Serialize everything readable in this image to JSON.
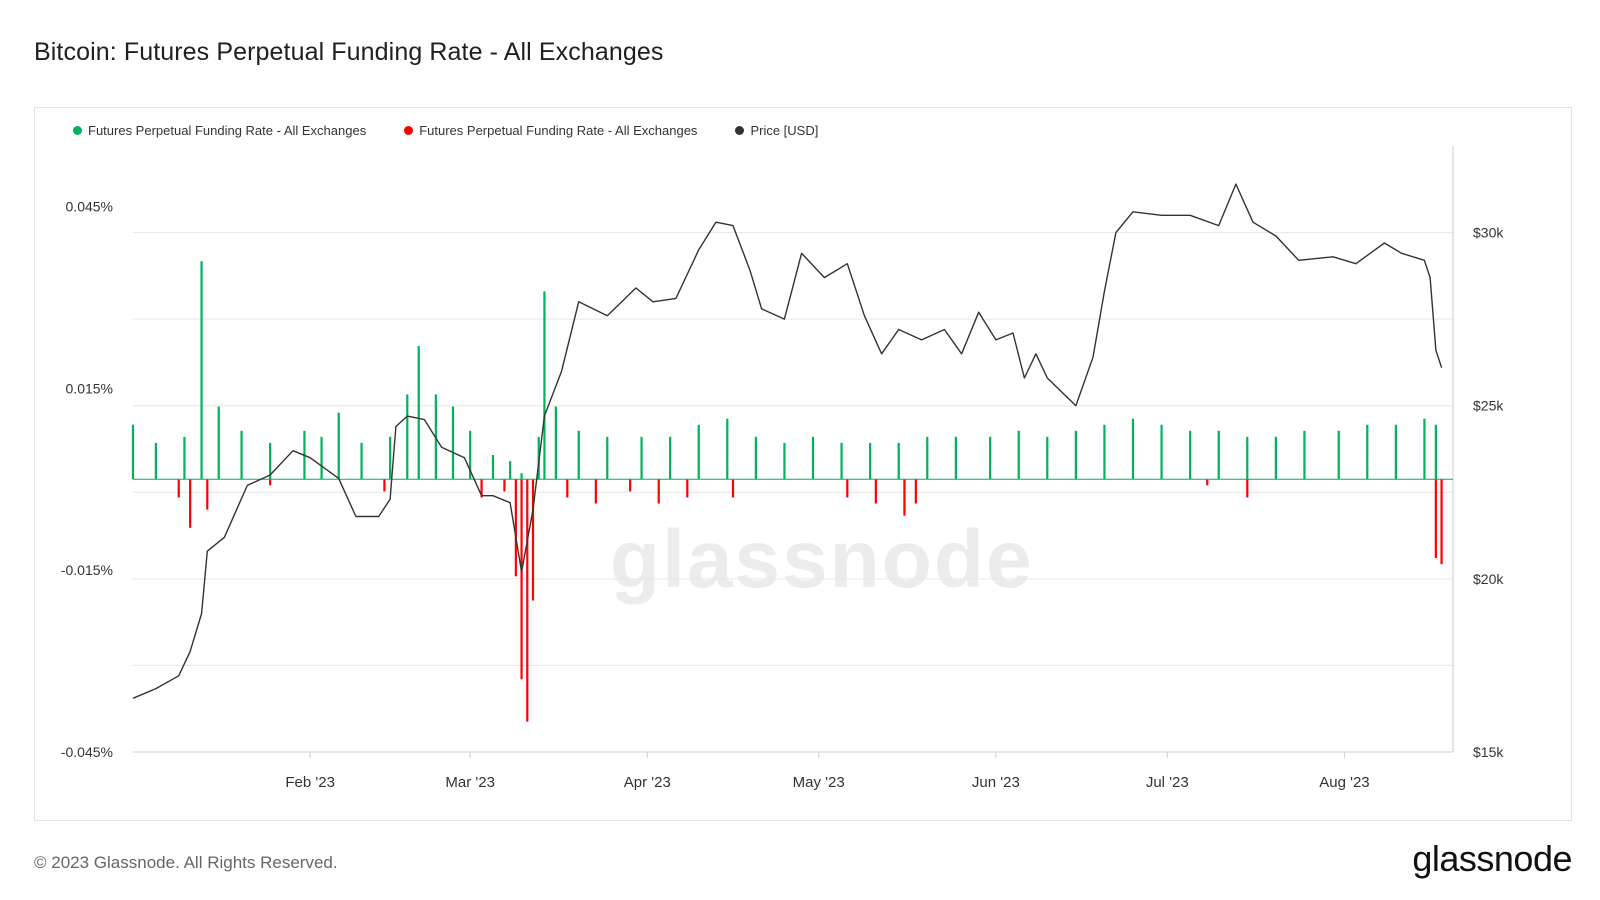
{
  "title": "Bitcoin: Futures Perpetual Funding Rate - All Exchanges",
  "footer": "© 2023 Glassnode. All Rights Reserved.",
  "brand": "glassnode",
  "watermark": "glassnode",
  "legend": [
    {
      "label": "Futures Perpetual Funding Rate - All Exchanges",
      "color": "#00b25a"
    },
    {
      "label": "Futures Perpetual Funding Rate - All Exchanges",
      "color": "#ff0000"
    },
    {
      "label": "Price [USD]",
      "color": "#333333"
    }
  ],
  "chart_data": {
    "type": "bar",
    "title": "Bitcoin: Futures Perpetual Funding Rate - All Exchanges",
    "x_range": [
      "2023-01-01",
      "2023-08-20"
    ],
    "x_ticks": [
      "Feb '23",
      "Mar '23",
      "Apr '23",
      "May '23",
      "Jun '23",
      "Jul '23",
      "Aug '23"
    ],
    "y_left_ticks": [
      "0.045%",
      "0.015%",
      "-0.015%",
      "-0.045%"
    ],
    "y_left_range": [
      -0.045,
      0.055
    ],
    "y_right_ticks": [
      "$30k",
      "$25k",
      "$20k",
      "$15k"
    ],
    "y_right_range": [
      15000,
      32500
    ],
    "grid": true,
    "legend_position": "top-left",
    "series": [
      {
        "name": "Futures Perpetual Funding Rate - All Exchanges",
        "axis": "left",
        "color": "#00b25a",
        "sign": "positive",
        "points": [
          [
            "2023-01-01",
            0.009
          ],
          [
            "2023-01-05",
            0.006
          ],
          [
            "2023-01-10",
            0.007
          ],
          [
            "2023-01-13",
            0.036
          ],
          [
            "2023-01-16",
            0.012
          ],
          [
            "2023-01-20",
            0.008
          ],
          [
            "2023-01-25",
            0.006
          ],
          [
            "2023-01-31",
            0.008
          ],
          [
            "2023-02-03",
            0.007
          ],
          [
            "2023-02-06",
            0.011
          ],
          [
            "2023-02-10",
            0.006
          ],
          [
            "2023-02-15",
            0.007
          ],
          [
            "2023-02-18",
            0.014
          ],
          [
            "2023-02-20",
            0.022
          ],
          [
            "2023-02-23",
            0.014
          ],
          [
            "2023-02-26",
            0.012
          ],
          [
            "2023-03-01",
            0.008
          ],
          [
            "2023-03-05",
            0.004
          ],
          [
            "2023-03-08",
            0.003
          ],
          [
            "2023-03-10",
            0.001
          ],
          [
            "2023-03-13",
            0.007
          ],
          [
            "2023-03-14",
            0.031
          ],
          [
            "2023-03-16",
            0.012
          ],
          [
            "2023-03-20",
            0.008
          ],
          [
            "2023-03-25",
            0.007
          ],
          [
            "2023-03-31",
            0.007
          ],
          [
            "2023-04-05",
            0.007
          ],
          [
            "2023-04-10",
            0.009
          ],
          [
            "2023-04-15",
            0.01
          ],
          [
            "2023-04-20",
            0.007
          ],
          [
            "2023-04-25",
            0.006
          ],
          [
            "2023-04-30",
            0.007
          ],
          [
            "2023-05-05",
            0.006
          ],
          [
            "2023-05-10",
            0.006
          ],
          [
            "2023-05-15",
            0.006
          ],
          [
            "2023-05-20",
            0.007
          ],
          [
            "2023-05-25",
            0.007
          ],
          [
            "2023-05-31",
            0.007
          ],
          [
            "2023-06-05",
            0.008
          ],
          [
            "2023-06-10",
            0.007
          ],
          [
            "2023-06-15",
            0.008
          ],
          [
            "2023-06-20",
            0.009
          ],
          [
            "2023-06-25",
            0.01
          ],
          [
            "2023-06-30",
            0.009
          ],
          [
            "2023-07-05",
            0.008
          ],
          [
            "2023-07-10",
            0.008
          ],
          [
            "2023-07-15",
            0.007
          ],
          [
            "2023-07-20",
            0.007
          ],
          [
            "2023-07-25",
            0.008
          ],
          [
            "2023-07-31",
            0.008
          ],
          [
            "2023-08-05",
            0.009
          ],
          [
            "2023-08-10",
            0.009
          ],
          [
            "2023-08-15",
            0.01
          ],
          [
            "2023-08-17",
            0.009
          ]
        ]
      },
      {
        "name": "Futures Perpetual Funding Rate - All Exchanges",
        "axis": "left",
        "color": "#ff0000",
        "sign": "negative",
        "points": [
          [
            "2023-01-09",
            -0.003
          ],
          [
            "2023-01-11",
            -0.008
          ],
          [
            "2023-01-14",
            -0.005
          ],
          [
            "2023-01-25",
            -0.001
          ],
          [
            "2023-02-14",
            -0.002
          ],
          [
            "2023-03-03",
            -0.003
          ],
          [
            "2023-03-07",
            -0.002
          ],
          [
            "2023-03-09",
            -0.016
          ],
          [
            "2023-03-10",
            -0.033
          ],
          [
            "2023-03-11",
            -0.04
          ],
          [
            "2023-03-12",
            -0.02
          ],
          [
            "2023-03-18",
            -0.003
          ],
          [
            "2023-03-23",
            -0.004
          ],
          [
            "2023-03-29",
            -0.002
          ],
          [
            "2023-04-03",
            -0.004
          ],
          [
            "2023-04-08",
            -0.003
          ],
          [
            "2023-04-16",
            -0.003
          ],
          [
            "2023-05-06",
            -0.003
          ],
          [
            "2023-05-11",
            -0.004
          ],
          [
            "2023-05-16",
            -0.006
          ],
          [
            "2023-05-18",
            -0.004
          ],
          [
            "2023-07-08",
            -0.001
          ],
          [
            "2023-07-15",
            -0.003
          ],
          [
            "2023-08-17",
            -0.013
          ],
          [
            "2023-08-18",
            -0.014
          ]
        ]
      },
      {
        "name": "Price [USD]",
        "axis": "right",
        "color": "#333333",
        "points": [
          [
            "2023-01-01",
            16550
          ],
          [
            "2023-01-05",
            16830
          ],
          [
            "2023-01-09",
            17200
          ],
          [
            "2023-01-11",
            17900
          ],
          [
            "2023-01-13",
            19000
          ],
          [
            "2023-01-14",
            20800
          ],
          [
            "2023-01-17",
            21200
          ],
          [
            "2023-01-21",
            22700
          ],
          [
            "2023-01-25",
            23000
          ],
          [
            "2023-01-29",
            23700
          ],
          [
            "2023-02-01",
            23500
          ],
          [
            "2023-02-06",
            22900
          ],
          [
            "2023-02-09",
            21800
          ],
          [
            "2023-02-13",
            21800
          ],
          [
            "2023-02-15",
            22300
          ],
          [
            "2023-02-16",
            24400
          ],
          [
            "2023-02-18",
            24700
          ],
          [
            "2023-02-21",
            24600
          ],
          [
            "2023-02-24",
            23800
          ],
          [
            "2023-02-28",
            23500
          ],
          [
            "2023-03-03",
            22400
          ],
          [
            "2023-03-05",
            22400
          ],
          [
            "2023-03-08",
            22200
          ],
          [
            "2023-03-10",
            20200
          ],
          [
            "2023-03-12",
            22000
          ],
          [
            "2023-03-14",
            24700
          ],
          [
            "2023-03-17",
            26000
          ],
          [
            "2023-03-20",
            28000
          ],
          [
            "2023-03-25",
            27600
          ],
          [
            "2023-03-30",
            28400
          ],
          [
            "2023-04-02",
            28000
          ],
          [
            "2023-04-06",
            28100
          ],
          [
            "2023-04-10",
            29500
          ],
          [
            "2023-04-13",
            30300
          ],
          [
            "2023-04-16",
            30200
          ],
          [
            "2023-04-19",
            28900
          ],
          [
            "2023-04-21",
            27800
          ],
          [
            "2023-04-25",
            27500
          ],
          [
            "2023-04-28",
            29400
          ],
          [
            "2023-05-02",
            28700
          ],
          [
            "2023-05-06",
            29100
          ],
          [
            "2023-05-09",
            27600
          ],
          [
            "2023-05-12",
            26500
          ],
          [
            "2023-05-15",
            27200
          ],
          [
            "2023-05-19",
            26900
          ],
          [
            "2023-05-23",
            27200
          ],
          [
            "2023-05-26",
            26500
          ],
          [
            "2023-05-29",
            27700
          ],
          [
            "2023-06-01",
            26900
          ],
          [
            "2023-06-04",
            27100
          ],
          [
            "2023-06-06",
            25800
          ],
          [
            "2023-06-08",
            26500
          ],
          [
            "2023-06-10",
            25800
          ],
          [
            "2023-06-15",
            25000
          ],
          [
            "2023-06-18",
            26400
          ],
          [
            "2023-06-20",
            28300
          ],
          [
            "2023-06-22",
            30000
          ],
          [
            "2023-06-25",
            30600
          ],
          [
            "2023-06-30",
            30500
          ],
          [
            "2023-07-05",
            30500
          ],
          [
            "2023-07-10",
            30200
          ],
          [
            "2023-07-13",
            31400
          ],
          [
            "2023-07-16",
            30300
          ],
          [
            "2023-07-20",
            29900
          ],
          [
            "2023-07-24",
            29200
          ],
          [
            "2023-07-30",
            29300
          ],
          [
            "2023-08-03",
            29100
          ],
          [
            "2023-08-08",
            29700
          ],
          [
            "2023-08-11",
            29400
          ],
          [
            "2023-08-15",
            29200
          ],
          [
            "2023-08-16",
            28700
          ],
          [
            "2023-08-17",
            26600
          ],
          [
            "2023-08-18",
            26100
          ]
        ]
      }
    ]
  }
}
